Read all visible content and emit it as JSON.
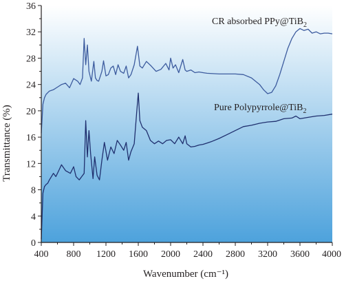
{
  "chart_data": {
    "type": "line",
    "xlabel": "Wavenumber (cm⁻¹)",
    "ylabel": "Transmittance (%)",
    "xlim": [
      400,
      4000
    ],
    "ylim": [
      0,
      36
    ],
    "xticks": [
      400,
      800,
      1200,
      1600,
      2000,
      2400,
      2800,
      3200,
      3600,
      4000
    ],
    "yticks": [
      0,
      4,
      8,
      12,
      16,
      20,
      24,
      28,
      32,
      36
    ],
    "grid": false,
    "legend": "none",
    "background": {
      "top": "#ffffff",
      "bottom": "#4da2dc"
    },
    "series": [
      {
        "name": "CR absorbed PPy@TiB2",
        "label_main": "CR absorbed PPy@TiB",
        "label_sub": "2",
        "color": "#3c5b9e",
        "x": [
          400,
          420,
          440,
          460,
          500,
          550,
          600,
          650,
          700,
          750,
          800,
          850,
          880,
          910,
          930,
          950,
          970,
          990,
          1020,
          1050,
          1070,
          1090,
          1110,
          1150,
          1170,
          1200,
          1230,
          1260,
          1290,
          1320,
          1350,
          1380,
          1420,
          1450,
          1480,
          1510,
          1550,
          1590,
          1620,
          1650,
          1700,
          1760,
          1820,
          1880,
          1940,
          1980,
          2000,
          2030,
          2060,
          2100,
          2150,
          2180,
          2200,
          2250,
          2300,
          2350,
          2400,
          2450,
          2600,
          2800,
          2900,
          3000,
          3100,
          3150,
          3200,
          3250,
          3300,
          3350,
          3400,
          3450,
          3500,
          3550,
          3600,
          3650,
          3700,
          3750,
          3800,
          3850,
          3900,
          3950,
          4000
        ],
        "y": [
          16.6,
          21.0,
          22.0,
          22.5,
          23.0,
          23.2,
          23.6,
          24.0,
          24.2,
          23.5,
          24.9,
          24.5,
          24.0,
          25.0,
          31.0,
          27.0,
          30.0,
          26.0,
          24.5,
          27.5,
          25.0,
          24.6,
          24.5,
          26.0,
          27.6,
          25.3,
          25.5,
          26.5,
          26.8,
          25.5,
          27.0,
          26.0,
          25.7,
          26.8,
          25.0,
          25.5,
          27.0,
          29.8,
          26.8,
          26.5,
          27.5,
          26.8,
          26.0,
          26.3,
          27.2,
          26.2,
          28.0,
          26.5,
          27.0,
          25.8,
          27.8,
          26.2,
          26.0,
          26.2,
          25.8,
          25.9,
          25.8,
          25.7,
          25.6,
          25.6,
          25.5,
          25.0,
          24.0,
          23.2,
          22.6,
          22.8,
          23.8,
          25.5,
          27.5,
          29.5,
          31.0,
          32.0,
          32.5,
          32.2,
          32.4,
          31.8,
          32.0,
          31.7,
          31.8,
          31.8,
          31.7
        ]
      },
      {
        "name": "Pure Polypyrrole@TiB2",
        "label_main": "Pure Polypyrrole@TiB",
        "label_sub": "2",
        "color": "#1f2f6e",
        "x": [
          400,
          420,
          440,
          460,
          480,
          500,
          550,
          580,
          620,
          650,
          700,
          760,
          800,
          830,
          870,
          900,
          930,
          950,
          970,
          990,
          1010,
          1040,
          1060,
          1090,
          1120,
          1150,
          1180,
          1220,
          1260,
          1300,
          1340,
          1380,
          1420,
          1450,
          1480,
          1510,
          1550,
          1580,
          1600,
          1620,
          1650,
          1700,
          1750,
          1800,
          1850,
          1900,
          1950,
          2000,
          2050,
          2100,
          2150,
          2180,
          2200,
          2250,
          2300,
          2350,
          2400,
          2450,
          2500,
          2600,
          2700,
          2800,
          2900,
          3000,
          3100,
          3200,
          3300,
          3400,
          3500,
          3550,
          3600,
          3700,
          3800,
          3900,
          4000
        ],
        "y": [
          0.5,
          7.5,
          8.5,
          8.8,
          9.0,
          9.5,
          10.5,
          10.0,
          11.0,
          11.8,
          10.9,
          10.5,
          11.5,
          10.0,
          9.5,
          10.0,
          10.5,
          18.5,
          13.0,
          17.0,
          13.5,
          9.7,
          13.0,
          10.2,
          9.5,
          12.5,
          15.2,
          12.5,
          14.5,
          13.5,
          15.5,
          14.8,
          14.0,
          15.2,
          12.5,
          13.8,
          15.0,
          19.8,
          22.7,
          18.5,
          17.5,
          17.0,
          15.5,
          15.0,
          15.4,
          15.0,
          15.5,
          15.6,
          15.0,
          16.0,
          15.0,
          16.2,
          15.0,
          14.5,
          14.6,
          14.8,
          14.9,
          15.1,
          15.3,
          15.8,
          16.4,
          17.0,
          17.6,
          17.8,
          18.1,
          18.3,
          18.4,
          18.8,
          18.9,
          19.2,
          18.8,
          19.0,
          19.2,
          19.3,
          19.5
        ]
      }
    ]
  }
}
